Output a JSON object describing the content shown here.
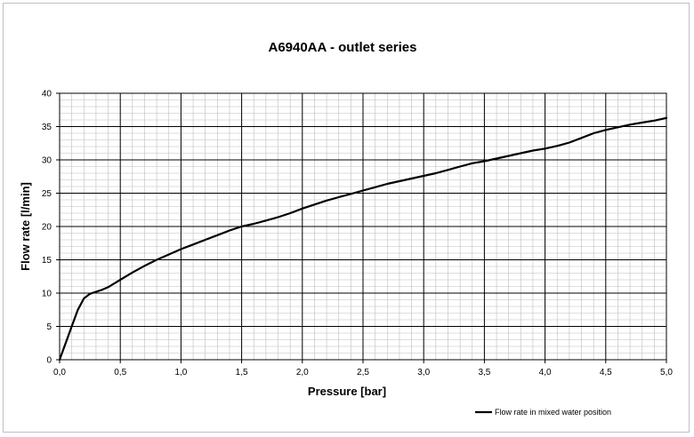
{
  "chart_data": {
    "type": "line",
    "title": "A6940AA - outlet series",
    "xlabel": "Pressure [bar]",
    "ylabel": "Flow rate [l/min]",
    "xlim": [
      0,
      5
    ],
    "ylim": [
      0,
      40
    ],
    "x_ticks": [
      "0,0",
      "0,5",
      "1,0",
      "1,5",
      "2,0",
      "2,5",
      "3,0",
      "3,5",
      "4,0",
      "4,5",
      "5,0"
    ],
    "y_ticks": [
      "0",
      "5",
      "10",
      "15",
      "20",
      "25",
      "30",
      "35",
      "40"
    ],
    "grid": true,
    "legend_position": "bottom-right",
    "series": [
      {
        "name": "Flow rate in mixed water position",
        "color": "#000000",
        "x": [
          0,
          0.05,
          0.1,
          0.15,
          0.2,
          0.25,
          0.3,
          0.35,
          0.4,
          0.5,
          0.6,
          0.7,
          0.8,
          0.9,
          1.0,
          1.1,
          1.2,
          1.3,
          1.4,
          1.5,
          1.6,
          1.7,
          1.8,
          1.9,
          2.0,
          2.1,
          2.2,
          2.3,
          2.4,
          2.5,
          2.6,
          2.7,
          2.8,
          2.9,
          3.0,
          3.1,
          3.2,
          3.3,
          3.4,
          3.5,
          3.6,
          3.7,
          3.8,
          3.9,
          4.0,
          4.1,
          4.2,
          4.3,
          4.4,
          4.5,
          4.6,
          4.7,
          4.8,
          4.9,
          5.0
        ],
        "y": [
          0,
          2.5,
          5.0,
          7.5,
          9.2,
          9.9,
          10.2,
          10.5,
          10.9,
          12.0,
          13.1,
          14.1,
          15.0,
          15.8,
          16.6,
          17.3,
          18.0,
          18.7,
          19.4,
          20.0,
          20.4,
          20.9,
          21.4,
          22.0,
          22.7,
          23.3,
          23.9,
          24.4,
          24.9,
          25.4,
          25.9,
          26.4,
          26.8,
          27.2,
          27.6,
          28.0,
          28.5,
          29.0,
          29.5,
          29.8,
          30.2,
          30.6,
          31.0,
          31.4,
          31.7,
          32.1,
          32.6,
          33.3,
          34.0,
          34.5,
          34.9,
          35.3,
          35.6,
          35.9,
          36.3
        ]
      }
    ]
  }
}
